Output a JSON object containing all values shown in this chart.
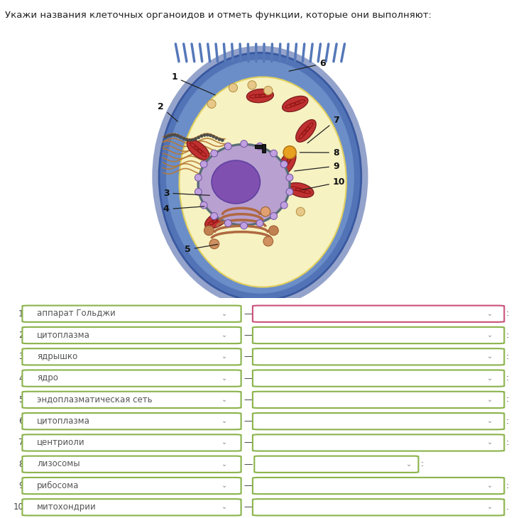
{
  "title": "Укажи названия клеточных органоидов и отметь функции, которые они выполняют:",
  "title_fontsize": 9.5,
  "bg_color": "#ffffff",
  "cell_bg_color": "#deeef5",
  "rows": [
    {
      "num": "1.",
      "left_text": "аппарат Гольджи",
      "dash": "—",
      "right_border_color": "#c9507a",
      "semicolon": ":",
      "short_right": false
    },
    {
      "num": "2.",
      "left_text": "цитоплазма",
      "dash": "—",
      "right_border_color": "#8ab34a",
      "semicolon": ":",
      "short_right": false
    },
    {
      "num": "3.",
      "left_text": "ядрышко",
      "dash": "—",
      "right_border_color": "#8ab34a",
      "semicolon": ":",
      "short_right": false
    },
    {
      "num": "4.",
      "left_text": "ядро",
      "dash": "—",
      "right_border_color": "#8ab34a",
      "semicolon": ":",
      "short_right": false
    },
    {
      "num": "5.",
      "left_text": "эндоплазматическая сеть",
      "dash": "—",
      "right_border_color": "#8ab34a",
      "semicolon": ":",
      "short_right": false
    },
    {
      "num": "6.",
      "left_text": "цитоплазма",
      "dash": "—",
      "right_border_color": "#8ab34a",
      "semicolon": ":",
      "short_right": false
    },
    {
      "num": "7.",
      "left_text": "центриоли",
      "dash": "—",
      "right_border_color": "#8ab34a",
      "semicolon": ":",
      "short_right": false
    },
    {
      "num": "8.",
      "left_text": "лизосомы",
      "dash": "—",
      "right_border_color": "#8ab34a",
      "semicolon": ":",
      "short_right": true
    },
    {
      "num": "9.",
      "left_text": "рибосома",
      "dash": "—",
      "right_border_color": "#8ab34a",
      "semicolon": ":",
      "short_right": false
    },
    {
      "num": "10.",
      "left_text": "митохондрии",
      "dash": "—",
      "right_border_color": "#8ab34a",
      "semicolon": ".",
      "short_right": false
    }
  ],
  "left_box_color": "#8ab34a",
  "dropdown_color": "#888888",
  "dropdown_arrow": "⌄"
}
